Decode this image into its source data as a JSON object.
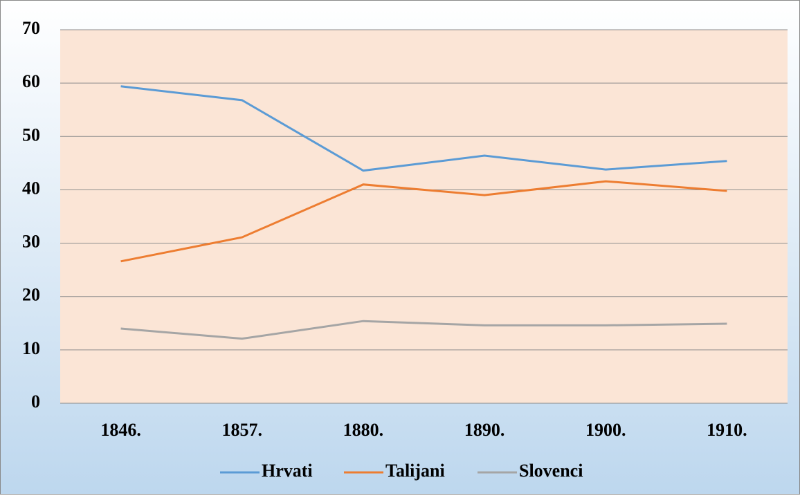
{
  "chart_data": {
    "type": "line",
    "categories": [
      "1846.",
      "1857.",
      "1880.",
      "1890.",
      "1900.",
      "1910."
    ],
    "series": [
      {
        "name": "Hrvati",
        "color": "#5b9bd5",
        "values": [
          59.4,
          56.8,
          43.6,
          46.4,
          43.8,
          45.4
        ]
      },
      {
        "name": "Talijani",
        "color": "#ed7d31",
        "values": [
          26.6,
          31.1,
          41.0,
          39.0,
          41.6,
          39.8
        ]
      },
      {
        "name": "Slovenci",
        "color": "#a5a5a5",
        "values": [
          14.0,
          12.1,
          15.4,
          14.6,
          14.6,
          14.9
        ]
      }
    ],
    "ylim": [
      0,
      70
    ],
    "yticks": [
      0,
      10,
      20,
      30,
      40,
      50,
      60,
      70
    ],
    "grid": true,
    "legend": "bottom"
  }
}
